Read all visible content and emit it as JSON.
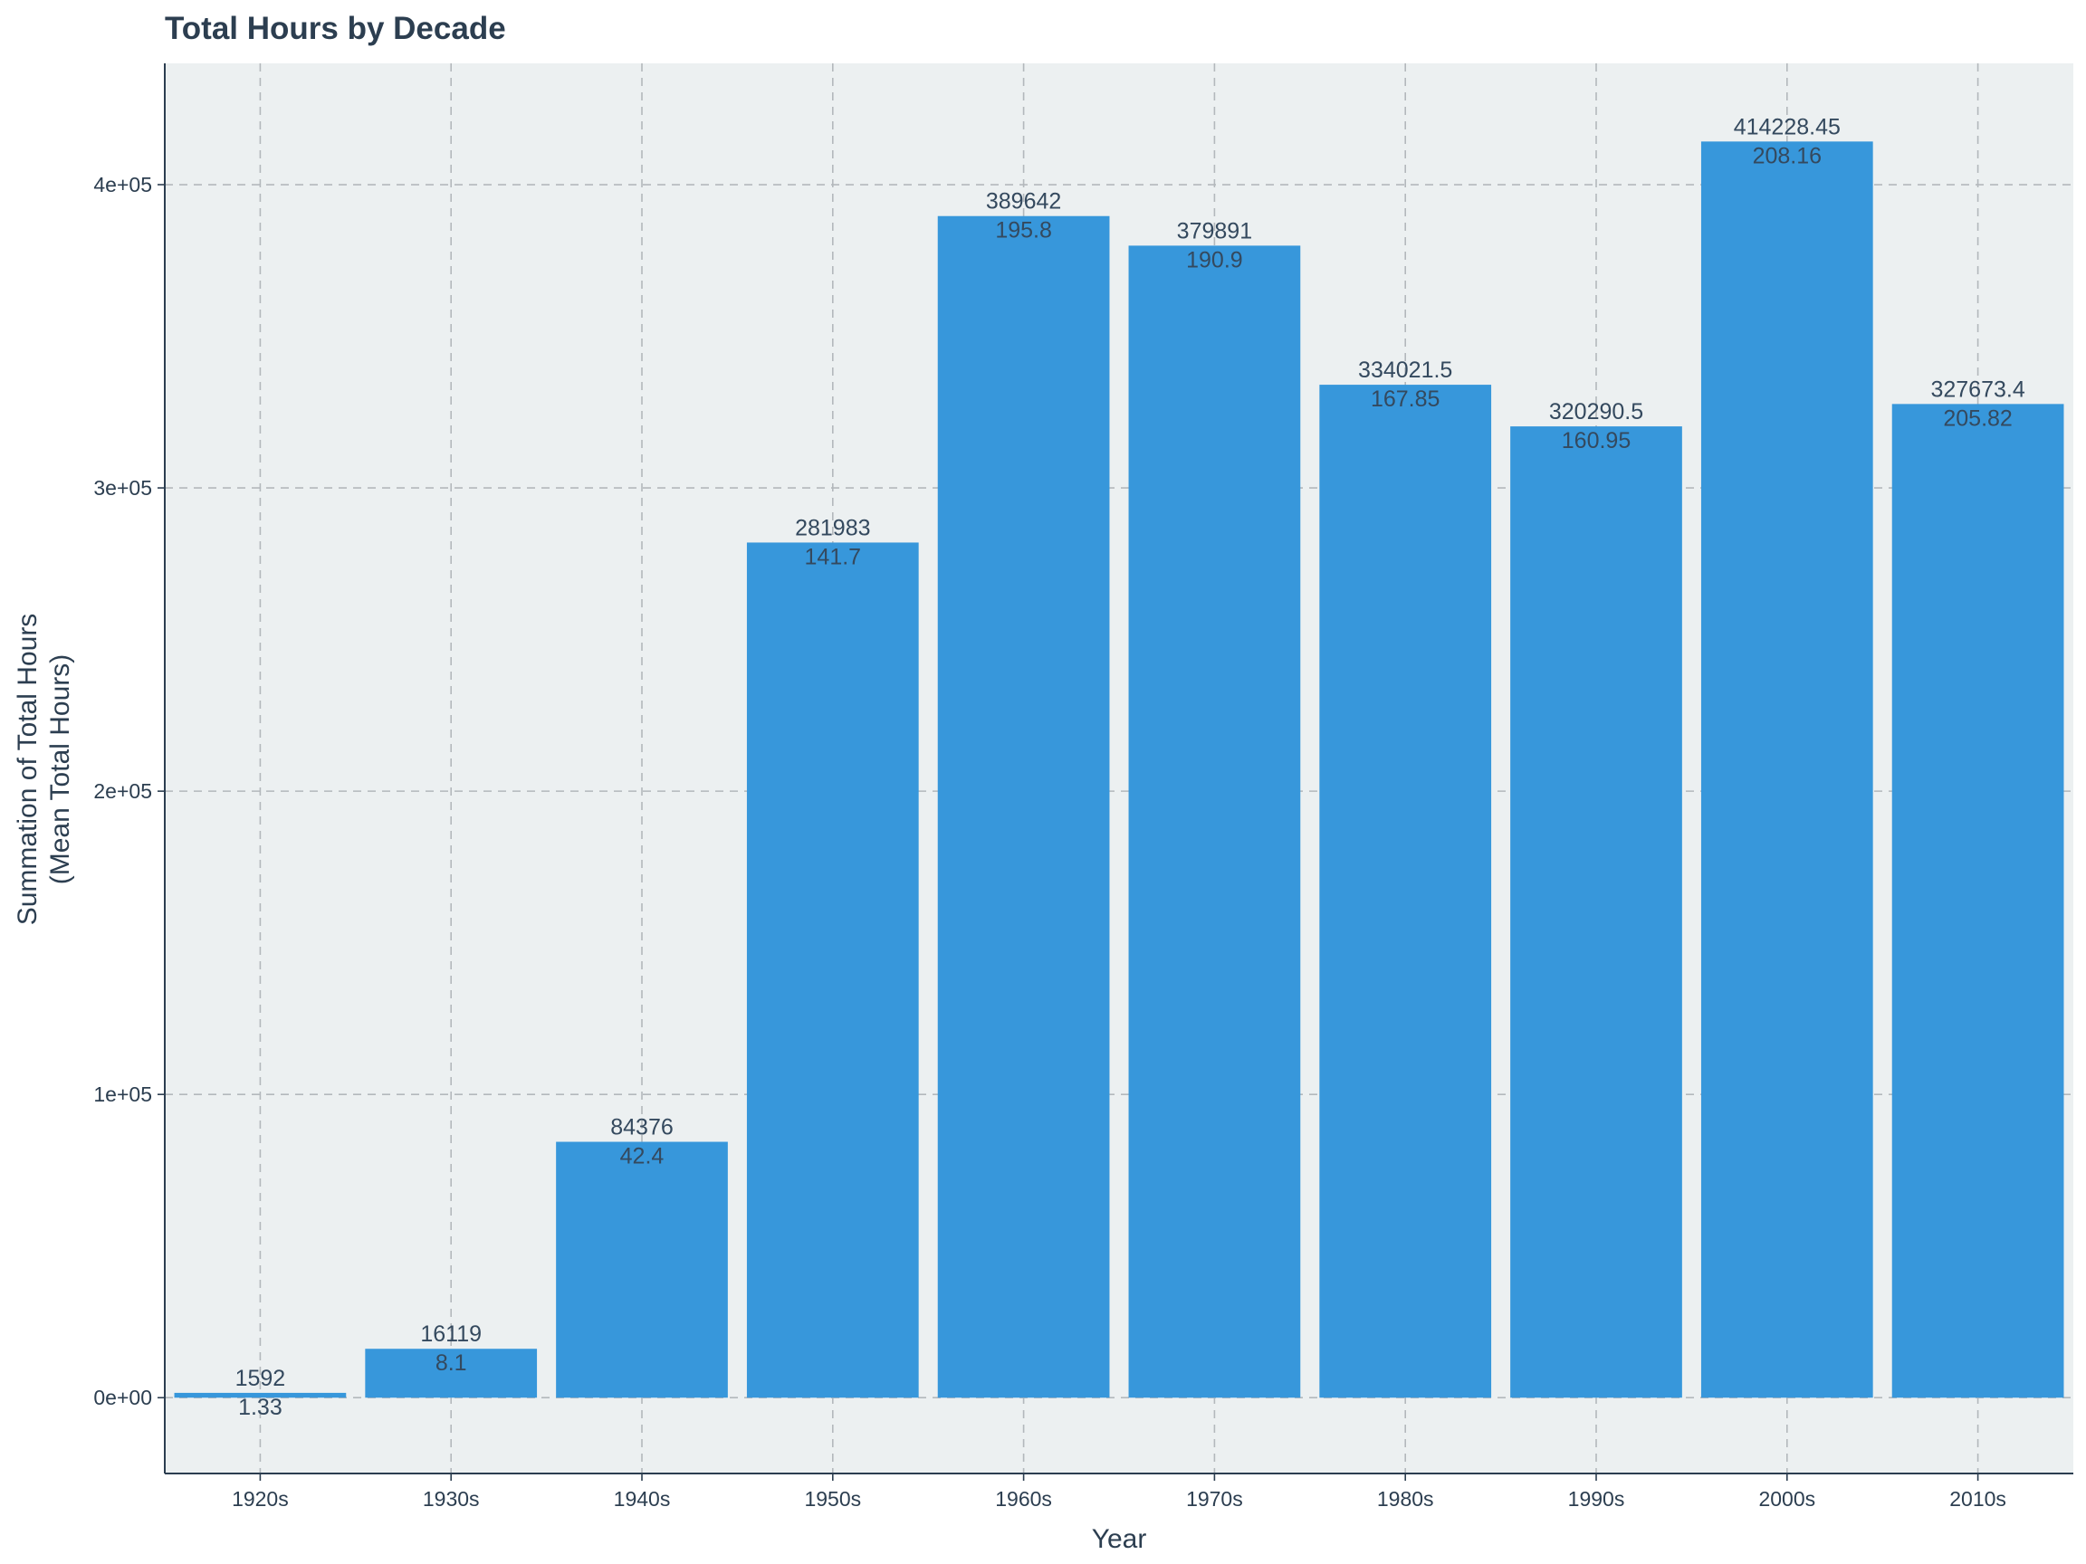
{
  "chart_data": {
    "type": "bar",
    "title": "Total Hours by Decade",
    "xlabel": "Year",
    "ylabel_lines": [
      "Summation of Total Hours",
      "(Mean Total Hours)"
    ],
    "categories": [
      "1920s",
      "1930s",
      "1940s",
      "1950s",
      "1960s",
      "1970s",
      "1980s",
      "1990s",
      "2000s",
      "2010s"
    ],
    "values": [
      1592,
      16119,
      84376,
      281983,
      389642,
      379891,
      334021.5,
      320290.5,
      414228.45,
      327673.4
    ],
    "sum_labels": [
      "1592",
      "16119",
      "84376",
      "281983",
      "389642",
      "379891",
      "334021.5",
      "320290.5",
      "414228.45",
      "327673.4"
    ],
    "mean_labels": [
      "1.33",
      "8.1",
      "42.4",
      "141.7",
      "195.8",
      "190.9",
      "167.85",
      "160.95",
      "208.16",
      "205.82"
    ],
    "y_ticks": [
      0,
      100000,
      200000,
      300000,
      400000
    ],
    "y_tick_labels": [
      "0e+00",
      "1e+05",
      "2e+05",
      "3e+05",
      "4e+05"
    ],
    "ylim": [
      -25000,
      440000
    ],
    "grid": true,
    "legend": "none",
    "colors": {
      "bar": "#3797db",
      "panel": "#ecf0f1",
      "text": "#2c3e50",
      "grid": "#b3b8bc",
      "axis": "#2c3e50"
    }
  }
}
